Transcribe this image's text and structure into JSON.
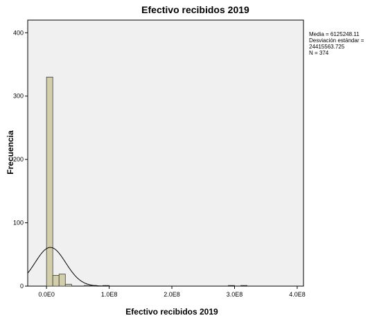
{
  "chart_data": {
    "type": "bar",
    "title": "Efectivo recibidos 2019",
    "xlabel": "Efectivo recibidos 2019",
    "ylabel": "Frecuencia",
    "xlim": [
      -30000000,
      410000000
    ],
    "ylim": [
      0,
      420
    ],
    "x_ticks": [
      0,
      100000000,
      200000000,
      300000000,
      400000000
    ],
    "x_tick_labels": [
      "0.0E0",
      "1.0E8",
      "2.0E8",
      "3.0E8",
      "4.0E8"
    ],
    "y_ticks": [
      0,
      100,
      200,
      300,
      400
    ],
    "y_tick_labels": [
      "0",
      "100",
      "200",
      "300",
      "400"
    ],
    "bin_width": 10000000,
    "bins": [
      {
        "x0": 0,
        "x1": 10000000,
        "count": 330
      },
      {
        "x0": 10000000,
        "x1": 20000000,
        "count": 17
      },
      {
        "x0": 20000000,
        "x1": 30000000,
        "count": 19
      },
      {
        "x0": 30000000,
        "x1": 40000000,
        "count": 3
      },
      {
        "x0": 40000000,
        "x1": 50000000,
        "count": 0
      },
      {
        "x0": 50000000,
        "x1": 60000000,
        "count": 0
      },
      {
        "x0": 60000000,
        "x1": 70000000,
        "count": 1
      },
      {
        "x0": 70000000,
        "x1": 80000000,
        "count": 1
      },
      {
        "x0": 80000000,
        "x1": 90000000,
        "count": 0
      },
      {
        "x0": 90000000,
        "x1": 100000000,
        "count": 1
      },
      {
        "x0": 290000000,
        "x1": 300000000,
        "count": 1
      },
      {
        "x0": 310000000,
        "x1": 320000000,
        "count": 1
      }
    ],
    "normal_curve": {
      "mean": 6125248.11,
      "sd": 24415563.725,
      "n": 374
    },
    "stats_lines": [
      "Media = 6125248.11",
      "Desviación estándar =",
      "24415563.725",
      "N = 374"
    ],
    "legend_position": "top-right",
    "grid": false,
    "colors": {
      "plot_background": "#f0f0f0",
      "bar_fill": "#d3ceaa",
      "bar_stroke": "#3a3a3a",
      "curve": "#000000",
      "frame": "#000000"
    }
  }
}
